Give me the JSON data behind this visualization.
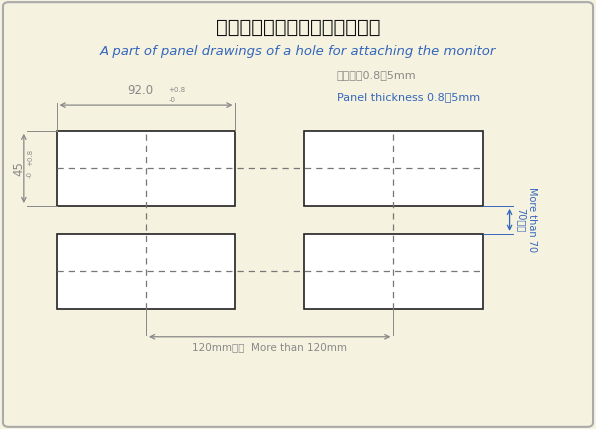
{
  "title_jp": "モニタ取付孔用パネルカット図",
  "title_en": "A part of panel drawings of a hole for attaching the monitor",
  "bg_color": "#f5f2e0",
  "border_color": "#aaaaaa",
  "rect_color": "#ffffff",
  "rect_edge_color": "#222222",
  "dash_color": "#777777",
  "dim_color": "#888888",
  "blue_color": "#3366bb",
  "title_jp_color": "#111111",
  "title_en_color": "#3366bb",
  "annotation_jp_color": "#888888",
  "annotation_en_color": "#3366bb",
  "panel_note_jp": "パネル厚0.8～5mm",
  "panel_note_en": "Panel thickness 0.8～5mm",
  "dim_92_label": "92.0",
  "dim_92_sup": "+0.8",
  "dim_92_sub": "-0",
  "dim_45_label": "45",
  "dim_45_sup": "+0.8",
  "dim_45_sub": "-0",
  "dim_120_label": "120mm以上  More than 120mm",
  "dim_70_label_jp": "70以上",
  "dim_70_label_en": "More than 70"
}
